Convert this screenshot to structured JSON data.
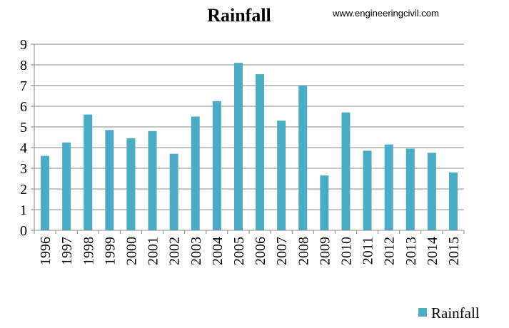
{
  "watermark": "www.engineeringcivil.com",
  "chart_data": {
    "type": "bar",
    "title": "Rainfall",
    "xlabel": "",
    "ylabel": "",
    "categories": [
      "1996",
      "1997",
      "1998",
      "1999",
      "2000",
      "2001",
      "2002",
      "2003",
      "2004",
      "2005",
      "2006",
      "2007",
      "2008",
      "2009",
      "2010",
      "2011",
      "2012",
      "2013",
      "2014",
      "2015"
    ],
    "series": [
      {
        "name": "Rainfall",
        "color": "#4BACC6",
        "values": [
          3.6,
          4.25,
          5.6,
          4.85,
          4.45,
          4.8,
          3.7,
          5.5,
          6.25,
          8.1,
          7.55,
          5.3,
          7.0,
          2.65,
          5.7,
          3.85,
          4.15,
          3.95,
          3.75,
          2.8
        ]
      }
    ],
    "ylim": [
      0,
      9
    ],
    "yticks": [
      0,
      1,
      2,
      3,
      4,
      5,
      6,
      7,
      8,
      9
    ],
    "grid": true,
    "legend_position": "bottom-right"
  }
}
